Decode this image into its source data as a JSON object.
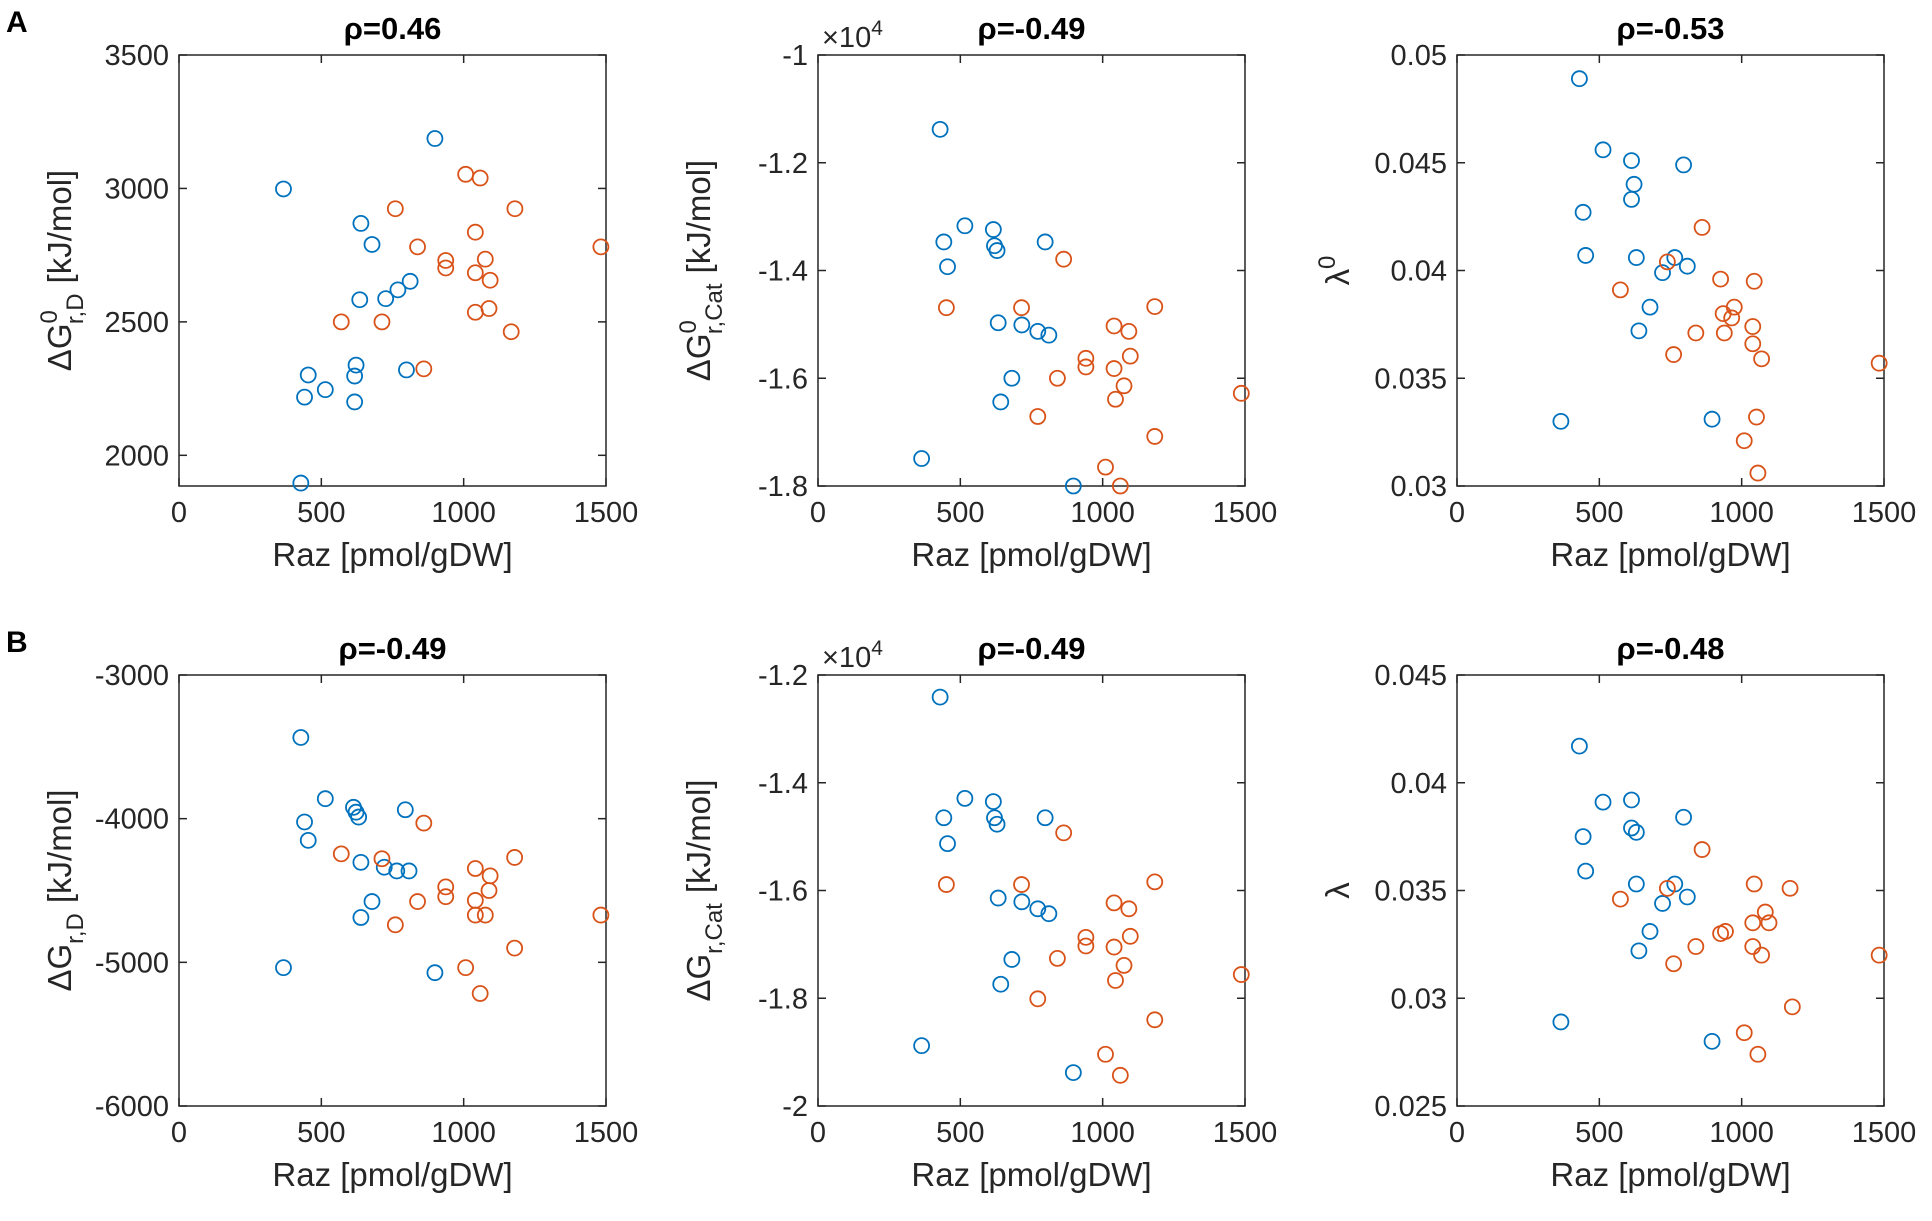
{
  "panel_labels": [
    "A",
    "B"
  ],
  "chart_data": [
    {
      "type": "scatter",
      "title": "ρ=0.46",
      "xlabel": "Raz [pmol/gDW]",
      "ylabel": {
        "main": "ΔG",
        "sup": "0",
        "sub": "r,D",
        "unit": "[kJ/mol]"
      },
      "xlim": [
        0,
        1500
      ],
      "xticks": [
        0,
        500,
        1000,
        1500
      ],
      "ylim": [
        1885,
        3500
      ],
      "yticks": [
        2000,
        2500,
        3000,
        3500
      ],
      "series": [
        {
          "color": "#0072bd",
          "x": [
            367,
            899,
            639,
            678,
            635,
            726,
            769,
            812,
            799,
            622,
            617,
            617,
            514,
            454,
            441,
            428
          ],
          "values": [
            2998,
            3187,
            2869,
            2790,
            2583,
            2587,
            2620,
            2652,
            2320,
            2338,
            2297,
            2200,
            2246,
            2301,
            2218,
            1896
          ]
        },
        {
          "color": "#d95319",
          "x": [
            1007,
            1058,
            1180,
            760,
            1041,
            838,
            937,
            937,
            1076,
            1041,
            1093,
            1041,
            1089,
            570,
            713,
            1167,
            1482,
            860
          ],
          "values": [
            3053,
            3039,
            2924,
            2924,
            2836,
            2781,
            2730,
            2702,
            2735,
            2684,
            2656,
            2536,
            2550,
            2500,
            2500,
            2463,
            2781,
            2324
          ]
        }
      ]
    },
    {
      "type": "scatter",
      "title": "ρ=-0.49",
      "xlabel": "Raz [pmol/gDW]",
      "ylabel": {
        "main": "ΔG",
        "sup": "0",
        "sub": "r,Cat",
        "unit": "[kJ/mol]"
      },
      "y_exponent": {
        "base": "×10",
        "power": "4"
      },
      "xlim": [
        0,
        1500
      ],
      "xticks": [
        0,
        500,
        1000,
        1500
      ],
      "ylim": [
        -1.8,
        -1
      ],
      "yticks": [
        -1.8,
        -1.6,
        -1.4,
        -1.2,
        -1
      ],
      "series": [
        {
          "color": "#0072bd",
          "x": [
            429,
            442,
            455,
            516,
            616,
            620,
            629,
            798,
            633,
            716,
            772,
            811,
            681,
            642,
            364,
            897
          ],
          "values": [
            -1.138,
            -1.347,
            -1.393,
            -1.317,
            -1.324,
            -1.354,
            -1.363,
            -1.347,
            -1.497,
            -1.501,
            -1.513,
            -1.52,
            -1.6,
            -1.644,
            -1.749,
            -1.8
          ]
        },
        {
          "color": "#d95319",
          "x": [
            451,
            715,
            863,
            1183,
            1040,
            1092,
            941,
            941,
            841,
            1097,
            1040,
            1075,
            1045,
            772,
            1010,
            1062,
            1183,
            1487
          ],
          "values": [
            -1.469,
            -1.469,
            -1.379,
            -1.467,
            -1.503,
            -1.513,
            -1.563,
            -1.579,
            -1.6,
            -1.559,
            -1.582,
            -1.614,
            -1.639,
            -1.671,
            -1.765,
            -1.8,
            -1.708,
            -1.628
          ]
        }
      ]
    },
    {
      "type": "scatter",
      "title": "ρ=-0.53",
      "xlabel": "Raz [pmol/gDW]",
      "ylabel": {
        "main": "λ",
        "sup": "0"
      },
      "xlim": [
        0,
        1500
      ],
      "xticks": [
        0,
        500,
        1000,
        1500
      ],
      "ylim": [
        0.03,
        0.05
      ],
      "yticks": [
        0.03,
        0.035,
        0.04,
        0.045,
        0.05
      ],
      "series": [
        {
          "color": "#0072bd",
          "x": [
            430,
            513,
            613,
            622,
            613,
            796,
            443,
            452,
            630,
            765,
            809,
            722,
            678,
            639,
            365,
            896
          ],
          "values": [
            0.0489,
            0.0456,
            0.0451,
            0.044,
            0.0433,
            0.0449,
            0.0427,
            0.0407,
            0.0406,
            0.0406,
            0.0402,
            0.0399,
            0.0383,
            0.0372,
            0.033,
            0.0331
          ]
        },
        {
          "color": "#d95319",
          "x": [
            574,
            739,
            861,
            926,
            1044,
            935,
            974,
            965,
            839,
            939,
            1039,
            1039,
            1070,
            761,
            1052,
            1009,
            1057,
            1483
          ],
          "values": [
            0.0391,
            0.0404,
            0.042,
            0.0396,
            0.0395,
            0.038,
            0.0383,
            0.0378,
            0.0371,
            0.0371,
            0.0374,
            0.0366,
            0.0359,
            0.0361,
            0.0332,
            0.0321,
            0.0306,
            0.0357
          ]
        }
      ]
    },
    {
      "type": "scatter",
      "title": "ρ=-0.49",
      "xlabel": "Raz [pmol/gDW]",
      "ylabel": {
        "main": "ΔG",
        "sub": "r,D",
        "unit": "[kJ/mol]"
      },
      "xlim": [
        0,
        1500
      ],
      "xticks": [
        0,
        500,
        1000,
        1500
      ],
      "ylim": [
        -6000,
        -3000
      ],
      "yticks": [
        -6000,
        -5000,
        -4000,
        -3000
      ],
      "series": [
        {
          "color": "#0072bd",
          "x": [
            428,
            441,
            454,
            514,
            613,
            622,
            631,
            795,
            639,
            721,
            765,
            808,
            678,
            639,
            367,
            899
          ],
          "values": [
            -3435,
            -4023,
            -4151,
            -3861,
            -3921,
            -3955,
            -3989,
            -3938,
            -4304,
            -4338,
            -4364,
            -4364,
            -4577,
            -4688,
            -5037,
            -5072
          ]
        },
        {
          "color": "#d95319",
          "x": [
            570,
            713,
            860,
            760,
            838,
            937,
            937,
            1041,
            1093,
            1041,
            1089,
            1041,
            1076,
            1179,
            1179,
            1007,
            1058,
            1482
          ],
          "values": [
            -4245,
            -4279,
            -4031,
            -4739,
            -4577,
            -4475,
            -4543,
            -4347,
            -4398,
            -4569,
            -4500,
            -4671,
            -4671,
            -4270,
            -4901,
            -5037,
            -5217,
            -4671
          ]
        }
      ]
    },
    {
      "type": "scatter",
      "title": "ρ=-0.49",
      "xlabel": "Raz [pmol/gDW]",
      "ylabel": {
        "main": "ΔG",
        "sub": "r,Cat",
        "unit": "[kJ/mol]"
      },
      "y_exponent": {
        "base": "×10",
        "power": "4"
      },
      "xlim": [
        0,
        1500
      ],
      "xticks": [
        0,
        500,
        1000,
        1500
      ],
      "ylim": [
        -2,
        -1.2
      ],
      "yticks": [
        -2,
        -1.8,
        -1.6,
        -1.4,
        -1.2
      ],
      "series": [
        {
          "color": "#0072bd",
          "x": [
            429,
            442,
            455,
            516,
            616,
            620,
            629,
            798,
            633,
            716,
            772,
            811,
            681,
            642,
            364,
            897
          ],
          "values": [
            -1.241,
            -1.465,
            -1.513,
            -1.429,
            -1.435,
            -1.465,
            -1.477,
            -1.465,
            -1.614,
            -1.621,
            -1.634,
            -1.643,
            -1.728,
            -1.774,
            -1.888,
            -1.938
          ]
        },
        {
          "color": "#d95319",
          "x": [
            451,
            715,
            863,
            1183,
            1040,
            1092,
            941,
            941,
            841,
            1097,
            1040,
            1075,
            1045,
            772,
            1010,
            1062,
            1183,
            1487
          ],
          "values": [
            -1.589,
            -1.589,
            -1.493,
            -1.584,
            -1.623,
            -1.634,
            -1.687,
            -1.703,
            -1.726,
            -1.685,
            -1.705,
            -1.739,
            -1.767,
            -1.801,
            -1.904,
            -1.943,
            -1.84,
            -1.756
          ]
        }
      ]
    },
    {
      "type": "scatter",
      "title": "ρ=-0.48",
      "xlabel": "Raz [pmol/gDW]",
      "ylabel": {
        "main": "λ"
      },
      "xlim": [
        0,
        1500
      ],
      "xticks": [
        0,
        500,
        1000,
        1500
      ],
      "ylim": [
        0.025,
        0.045
      ],
      "yticks": [
        0.025,
        0.03,
        0.035,
        0.04,
        0.045
      ],
      "series": [
        {
          "color": "#0072bd",
          "x": [
            430,
            443,
            452,
            513,
            613,
            613,
            630,
            796,
            630,
            765,
            809,
            722,
            678,
            639,
            365,
            896
          ],
          "values": [
            0.0417,
            0.0375,
            0.0359,
            0.0391,
            0.0392,
            0.0379,
            0.0377,
            0.0384,
            0.0353,
            0.0353,
            0.0347,
            0.0344,
            0.0331,
            0.0322,
            0.0289,
            0.028
          ]
        },
        {
          "color": "#d95319",
          "x": [
            574,
            739,
            861,
            926,
            943,
            1044,
            1083,
            1096,
            839,
            1039,
            1039,
            1070,
            761,
            1170,
            1178,
            1009,
            1057,
            1483
          ],
          "values": [
            0.0346,
            0.0351,
            0.0369,
            0.033,
            0.0331,
            0.0353,
            0.034,
            0.0335,
            0.0324,
            0.0335,
            0.0324,
            0.032,
            0.0316,
            0.0351,
            0.0296,
            0.0284,
            0.0274,
            0.032
          ]
        }
      ]
    }
  ]
}
